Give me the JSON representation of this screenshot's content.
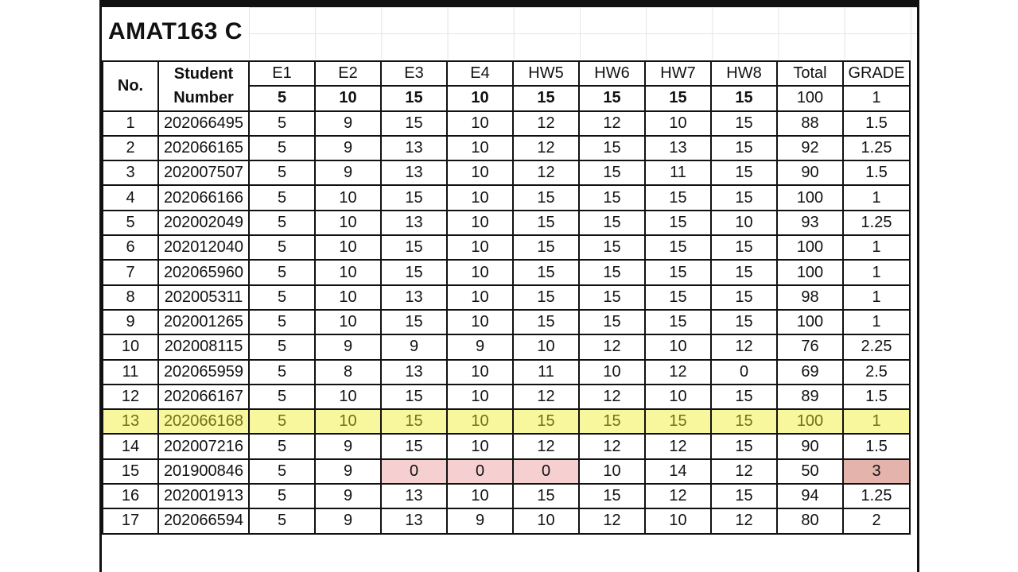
{
  "title": "AMAT163 C",
  "headers": {
    "no": "No.",
    "student_number": "Student Number",
    "columns": [
      "E1",
      "E2",
      "E3",
      "E4",
      "HW5",
      "HW6",
      "HW7",
      "HW8",
      "Total",
      "GRADE"
    ]
  },
  "max_scores": [
    "5",
    "10",
    "15",
    "10",
    "15",
    "15",
    "15",
    "15",
    "100",
    "1"
  ],
  "rows": [
    {
      "no": "1",
      "id": "202066495",
      "scores": [
        "5",
        "9",
        "15",
        "10",
        "12",
        "12",
        "10",
        "15",
        "88",
        "1.5"
      ]
    },
    {
      "no": "2",
      "id": "202066165",
      "scores": [
        "5",
        "9",
        "13",
        "10",
        "12",
        "15",
        "13",
        "15",
        "92",
        "1.25"
      ]
    },
    {
      "no": "3",
      "id": "202007507",
      "scores": [
        "5",
        "9",
        "13",
        "10",
        "12",
        "15",
        "11",
        "15",
        "90",
        "1.5"
      ]
    },
    {
      "no": "4",
      "id": "202066166",
      "scores": [
        "5",
        "10",
        "15",
        "10",
        "15",
        "15",
        "15",
        "15",
        "100",
        "1"
      ]
    },
    {
      "no": "5",
      "id": "202002049",
      "scores": [
        "5",
        "10",
        "13",
        "10",
        "15",
        "15",
        "15",
        "10",
        "93",
        "1.25"
      ]
    },
    {
      "no": "6",
      "id": "202012040",
      "scores": [
        "5",
        "10",
        "15",
        "10",
        "15",
        "15",
        "15",
        "15",
        "100",
        "1"
      ]
    },
    {
      "no": "7",
      "id": "202065960",
      "scores": [
        "5",
        "10",
        "15",
        "10",
        "15",
        "15",
        "15",
        "15",
        "100",
        "1"
      ]
    },
    {
      "no": "8",
      "id": "202005311",
      "scores": [
        "5",
        "10",
        "13",
        "10",
        "15",
        "15",
        "15",
        "15",
        "98",
        "1"
      ]
    },
    {
      "no": "9",
      "id": "202001265",
      "scores": [
        "5",
        "10",
        "15",
        "10",
        "15",
        "15",
        "15",
        "15",
        "100",
        "1"
      ]
    },
    {
      "no": "10",
      "id": "202008115",
      "scores": [
        "5",
        "9",
        "9",
        "9",
        "10",
        "12",
        "10",
        "12",
        "76",
        "2.25"
      ]
    },
    {
      "no": "11",
      "id": "202065959",
      "scores": [
        "5",
        "8",
        "13",
        "10",
        "11",
        "10",
        "12",
        "0",
        "69",
        "2.5"
      ]
    },
    {
      "no": "12",
      "id": "202066167",
      "scores": [
        "5",
        "10",
        "15",
        "10",
        "12",
        "12",
        "10",
        "15",
        "89",
        "1.5"
      ]
    },
    {
      "no": "13",
      "id": "202066168",
      "scores": [
        "5",
        "10",
        "15",
        "10",
        "15",
        "15",
        "15",
        "15",
        "100",
        "1"
      ],
      "highlight": true
    },
    {
      "no": "14",
      "id": "202007216",
      "scores": [
        "5",
        "9",
        "15",
        "10",
        "12",
        "12",
        "12",
        "15",
        "90",
        "1.5"
      ]
    },
    {
      "no": "15",
      "id": "201900846",
      "scores": [
        "5",
        "9",
        "0",
        "0",
        "0",
        "10",
        "14",
        "12",
        "50",
        "3"
      ],
      "zero_cells": [
        2,
        3,
        4
      ],
      "grade_flag": true
    },
    {
      "no": "16",
      "id": "202001913",
      "scores": [
        "5",
        "9",
        "13",
        "10",
        "15",
        "15",
        "12",
        "15",
        "94",
        "1.25"
      ]
    },
    {
      "no": "17",
      "id": "202066594",
      "scores": [
        "5",
        "9",
        "13",
        "9",
        "10",
        "12",
        "10",
        "12",
        "80",
        "2"
      ]
    }
  ],
  "colors": {
    "highlight_row": "#f8f79e",
    "zero_cell": "#f6d0d0",
    "failing_grade": "#e4b3ac"
  }
}
